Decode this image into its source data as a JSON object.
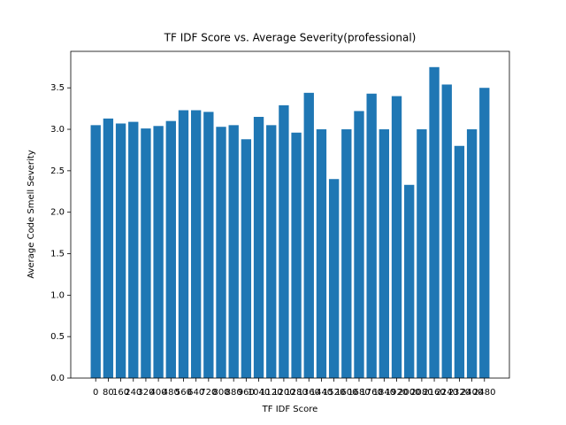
{
  "chart_data": {
    "type": "bar",
    "title": "TF IDF Score vs. Average Severity(professional)",
    "xlabel": "TF IDF Score",
    "ylabel": "Average Code Smell Severity",
    "categories": [
      "0",
      "80",
      "160",
      "240",
      "320",
      "400",
      "480",
      "560",
      "640",
      "720",
      "800",
      "880",
      "960",
      "1040",
      "1120",
      "1200",
      "1280",
      "1360",
      "1440",
      "1520",
      "1600",
      "1680",
      "1760",
      "1840",
      "1920",
      "2000",
      "2080",
      "2160",
      "2240",
      "2320",
      "2400",
      "2480"
    ],
    "values": [
      3.05,
      3.13,
      3.07,
      3.09,
      3.01,
      3.04,
      3.1,
      3.23,
      3.23,
      3.21,
      3.03,
      3.05,
      2.88,
      3.15,
      3.05,
      3.29,
      2.96,
      3.44,
      3.0,
      2.4,
      3.0,
      3.22,
      3.43,
      3.0,
      3.4,
      2.33,
      3.0,
      3.75,
      3.54,
      2.8,
      3.0,
      3.5
    ],
    "color": "#1f77b4",
    "ylim": [
      0,
      3.94
    ],
    "yticks": [
      {
        "value": 0,
        "label": "0.0"
      },
      {
        "value": 0.5,
        "label": "0.5"
      },
      {
        "value": 1,
        "label": "1.0"
      },
      {
        "value": 1.5,
        "label": "1.5"
      },
      {
        "value": 2,
        "label": "2.0"
      },
      {
        "value": 2.5,
        "label": "2.5"
      },
      {
        "value": 3,
        "label": "3.0"
      },
      {
        "value": 3.5,
        "label": "3.5"
      }
    ]
  }
}
